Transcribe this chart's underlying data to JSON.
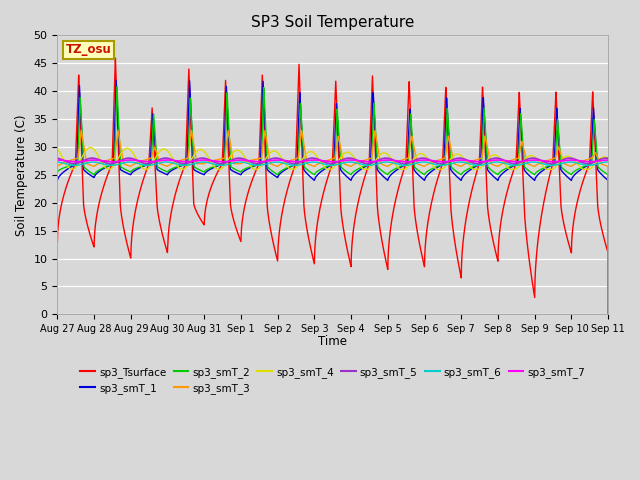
{
  "title": "SP3 Soil Temperature",
  "ylabel": "Soil Temperature (C)",
  "xlabel": "Time",
  "ylim": [
    0,
    50
  ],
  "bg_color": "#d8d8d8",
  "plot_bg_color": "#d8d8d8",
  "tz_label": "TZ_osu",
  "series_colors": {
    "sp3_Tsurface": "#ff0000",
    "sp3_smT_1": "#0000dd",
    "sp3_smT_2": "#00cc00",
    "sp3_smT_3": "#ff9900",
    "sp3_smT_4": "#dddd00",
    "sp3_smT_5": "#9933cc",
    "sp3_smT_6": "#00cccc",
    "sp3_smT_7": "#ff00ff"
  },
  "x_tick_labels": [
    "Aug 27",
    "Aug 28",
    "Aug 29",
    "Aug 30",
    "Aug 31",
    "Sep 1",
    "Sep 2",
    "Sep 3",
    "Sep 4",
    "Sep 5",
    "Sep 6",
    "Sep 7",
    "Sep 8",
    "Sep 9",
    "Sep 10",
    "Sep 11"
  ]
}
